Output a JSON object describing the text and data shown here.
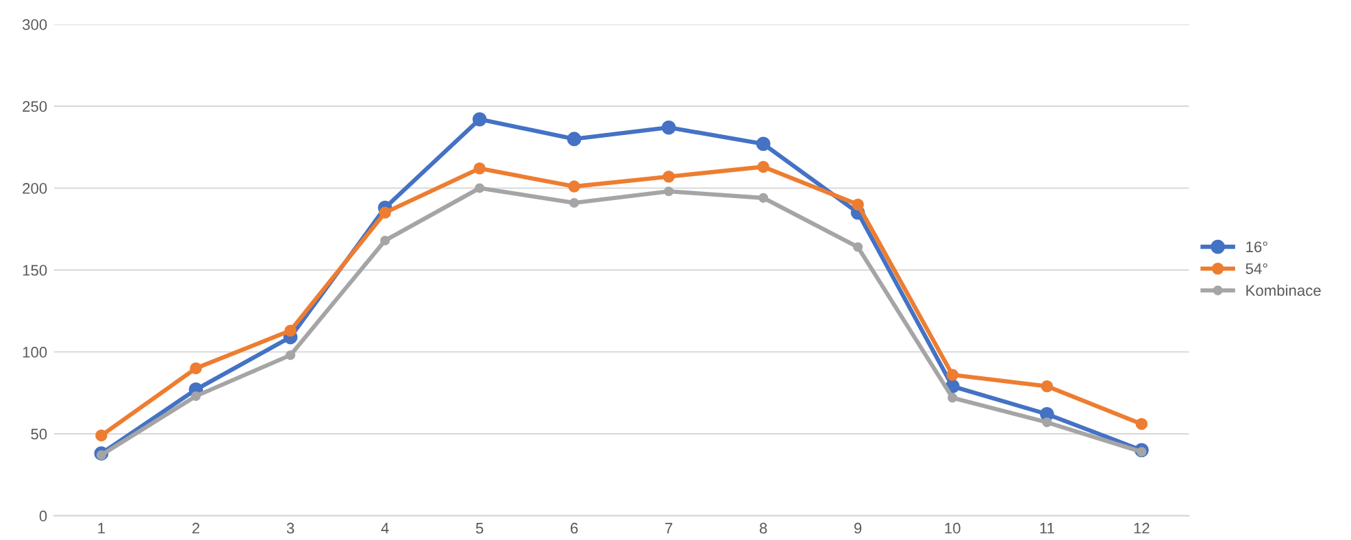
{
  "chart_data": {
    "type": "line",
    "categories": [
      "1",
      "2",
      "3",
      "4",
      "5",
      "6",
      "7",
      "8",
      "9",
      "10",
      "11",
      "12"
    ],
    "series": [
      {
        "name": "16°",
        "color": "#4472c4",
        "values": [
          38,
          77,
          109,
          188,
          242,
          230,
          237,
          227,
          185,
          79,
          62,
          40
        ]
      },
      {
        "name": "54°",
        "color": "#ed7d31",
        "values": [
          49,
          90,
          113,
          185,
          212,
          201,
          207,
          213,
          190,
          86,
          79,
          56
        ]
      },
      {
        "name": "Kombinace",
        "color": "#a5a5a5",
        "values": [
          37,
          73,
          98,
          168,
          200,
          191,
          198,
          194,
          164,
          72,
          57,
          39
        ]
      }
    ],
    "ylim": [
      0,
      300
    ],
    "yticks": [
      0,
      50,
      100,
      150,
      200,
      250,
      300
    ],
    "grid": "y",
    "legend": "right",
    "marker": "circle",
    "line_style": "solid"
  }
}
